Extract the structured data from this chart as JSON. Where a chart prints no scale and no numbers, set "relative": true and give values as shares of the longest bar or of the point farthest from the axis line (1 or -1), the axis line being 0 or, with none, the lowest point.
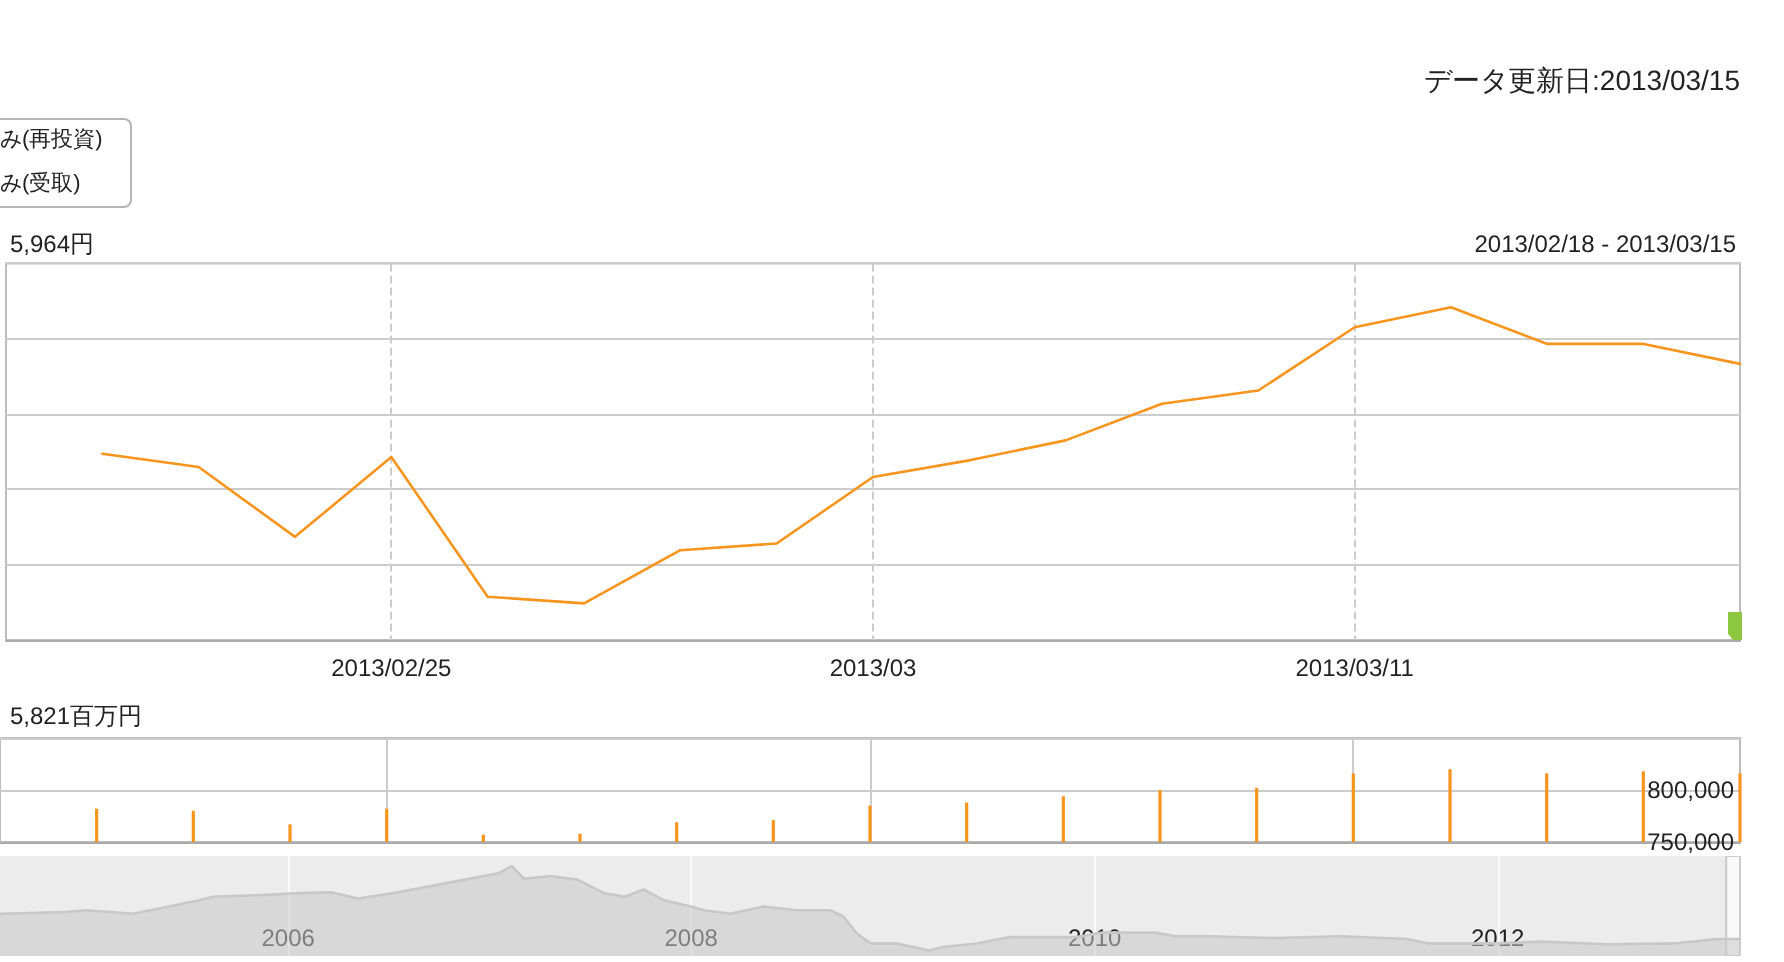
{
  "chart_data": [
    {
      "type": "line",
      "categories": [
        null,
        null,
        null,
        null,
        "2013/02/25",
        null,
        null,
        null,
        null,
        "2013/03",
        null,
        null,
        null,
        null,
        "2013/03/11",
        null,
        null,
        null,
        null
      ],
      "values": [
        null,
        0.56,
        0.52,
        0.31,
        0.55,
        0.13,
        0.11,
        0.27,
        0.29,
        0.49,
        0.54,
        0.6,
        0.71,
        0.75,
        0.94,
        1,
        0.89,
        0.89,
        0.83
      ],
      "color": "#f7941e",
      "relative": true,
      "grid": true,
      "marker": "none",
      "annotations": [
        "データ更新日:2013/03/15",
        "み(再投資)",
        "み(受取)",
        "5,964円",
        "2013/02/18 - 2013/03/15"
      ]
    },
    {
      "type": "bar",
      "categories": [
        null,
        null,
        null,
        null,
        "2013/02/25",
        null,
        null,
        null,
        null,
        "2013/03",
        null,
        null,
        null,
        null,
        "2013/03/11",
        null,
        null,
        null,
        null
      ],
      "values": [
        null,
        782000,
        780000,
        767000,
        782000,
        757000,
        758000,
        769000,
        771000,
        785000,
        788000,
        794000,
        800000,
        802000,
        816000,
        820000,
        816000,
        818000,
        816000
      ],
      "color": "#f7941e",
      "ylim": [
        750000,
        850000
      ],
      "yticks": [
        {
          "value": 750000,
          "label": "750,000"
        },
        {
          "value": 800000,
          "label": "800,000"
        }
      ],
      "grid": true,
      "tick_labels": "y",
      "annotations": [
        "5,821百万円"
      ]
    },
    {
      "type": "area",
      "x": [
        "2004-07-28",
        "2004-11-24",
        "2005-01-01",
        "2005-03-26",
        "2005-07-24",
        "2005-08-17",
        "2005-11-22",
        "2006-01-21",
        "2006-03-20",
        "2006-05-08",
        "2006-07-19",
        "2006-11-17",
        "2007-01-17",
        "2007-02-10",
        "2007-03-04",
        "2007-04-22",
        "2007-06-09",
        "2007-07-27",
        "2007-09-02",
        "2007-10-07",
        "2007-11-13",
        "2008-01-01",
        "2008-01-24",
        "2008-03-12",
        "2008-05-11",
        "2008-07-10",
        "2008-09-09",
        "2008-10-03",
        "2008-10-27",
        "2008-11-21",
        "2009-01-08",
        "2009-03-08",
        "2009-04-01",
        "2009-06-01",
        "2009-07-31",
        "2009-09-30",
        "2009-11-29",
        "2010-01-15",
        "2010-04-20",
        "2010-05-28",
        "2010-07-26",
        "2010-11-24",
        "2011-03-22",
        "2011-07-21",
        "2011-08-28",
        "2011-11-19",
        "2011-12-27",
        "2012-03-18",
        "2012-07-18",
        "2012-11-15",
        "2013-02-02",
        "2013-03-15"
      ],
      "values": [
        0.47,
        0.49,
        0.51,
        0.47,
        0.62,
        0.66,
        0.68,
        0.7,
        0.71,
        0.64,
        0.71,
        0.85,
        0.92,
        1,
        0.86,
        0.89,
        0.85,
        0.7,
        0.66,
        0.74,
        0.62,
        0.55,
        0.51,
        0.47,
        0.55,
        0.51,
        0.51,
        0.44,
        0.25,
        0.14,
        0.14,
        0.06,
        0.1,
        0.14,
        0.21,
        0.21,
        0.21,
        0.26,
        0.26,
        0.22,
        0.22,
        0.2,
        0.22,
        0.19,
        0.14,
        0.14,
        0.14,
        0.16,
        0.13,
        0.14,
        0.19,
        0.19
      ],
      "color": "#c8c8c8",
      "relative": true,
      "marker": "none",
      "xlim": [
        "2004-07-28",
        "2013-03-15"
      ],
      "xticks": [
        "2006",
        "2008",
        "2010",
        "2012"
      ],
      "grid": "x",
      "bands": [
        {
          "axis": "x",
          "from": "2013-02-18",
          "to": "2013-03-15",
          "color": "#ffffff"
        }
      ]
    }
  ]
}
